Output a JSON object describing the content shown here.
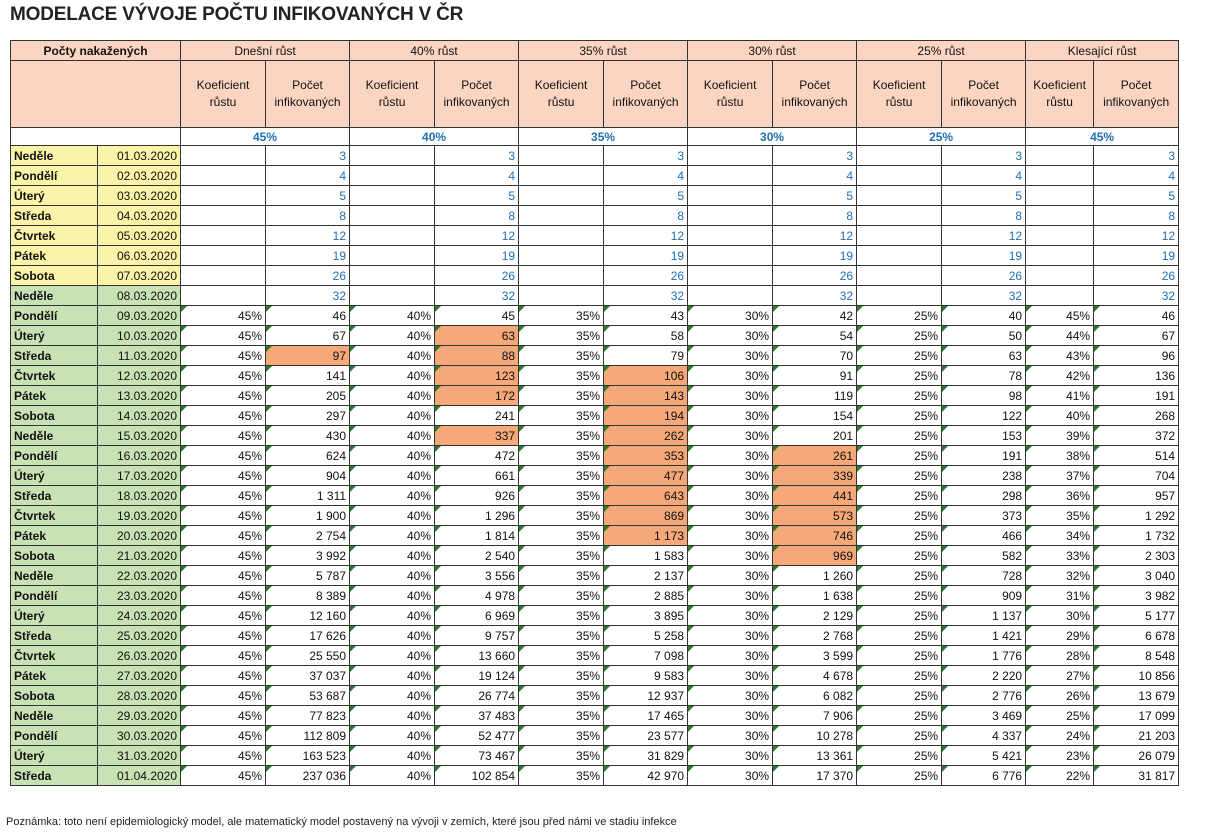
{
  "title": "MODELACE VÝVOJE POČTU INFIKOVANÝCH V ČR",
  "corner_header": "Počty nakažených",
  "groups": [
    "Dnešní růst",
    "40% růst",
    "35% růst",
    "30% růst",
    "25% růst",
    "Klesající růst"
  ],
  "subheaders": [
    "Koeficient růstu",
    "Počet infikovaných"
  ],
  "rates": [
    "45%",
    "40%",
    "35%",
    "30%",
    "25%",
    "45%"
  ],
  "rows": [
    {
      "day": "Neděle",
      "date": "01.03.2020",
      "cells": [
        null,
        "3",
        null,
        "3",
        null,
        "3",
        null,
        "3",
        null,
        "3",
        null,
        "3"
      ]
    },
    {
      "day": "Pondělí",
      "date": "02.03.2020",
      "cells": [
        null,
        "4",
        null,
        "4",
        null,
        "4",
        null,
        "4",
        null,
        "4",
        null,
        "4"
      ]
    },
    {
      "day": "Úterý",
      "date": "03.03.2020",
      "cells": [
        null,
        "5",
        null,
        "5",
        null,
        "5",
        null,
        "5",
        null,
        "5",
        null,
        "5"
      ]
    },
    {
      "day": "Středa",
      "date": "04.03.2020",
      "cells": [
        null,
        "8",
        null,
        "8",
        null,
        "8",
        null,
        "8",
        null,
        "8",
        null,
        "8"
      ]
    },
    {
      "day": "Čtvrtek",
      "date": "05.03.2020",
      "cells": [
        null,
        "12",
        null,
        "12",
        null,
        "12",
        null,
        "12",
        null,
        "12",
        null,
        "12"
      ]
    },
    {
      "day": "Pátek",
      "date": "06.03.2020",
      "cells": [
        null,
        "19",
        null,
        "19",
        null,
        "19",
        null,
        "19",
        null,
        "19",
        null,
        "19"
      ]
    },
    {
      "day": "Sobota",
      "date": "07.03.2020",
      "cells": [
        null,
        "26",
        null,
        "26",
        null,
        "26",
        null,
        "26",
        null,
        "26",
        null,
        "26"
      ]
    },
    {
      "day": "Neděle",
      "date": "08.03.2020",
      "cells": [
        null,
        "32",
        null,
        "32",
        null,
        "32",
        null,
        "32",
        null,
        "32",
        null,
        "32"
      ]
    },
    {
      "day": "Pondělí",
      "date": "09.03.2020",
      "cells": [
        "45%",
        "46",
        "40%",
        "45",
        "35%",
        "43",
        "30%",
        "42",
        "25%",
        "40",
        "45%",
        "46"
      ]
    },
    {
      "day": "Úterý",
      "date": "10.03.2020",
      "cells": [
        "45%",
        "67",
        "40%",
        "63",
        "35%",
        "58",
        "30%",
        "54",
        "25%",
        "50",
        "44%",
        "67"
      ]
    },
    {
      "day": "Středa",
      "date": "11.03.2020",
      "cells": [
        "45%",
        "97",
        "40%",
        "88",
        "35%",
        "79",
        "30%",
        "70",
        "25%",
        "63",
        "43%",
        "96"
      ]
    },
    {
      "day": "Čtvrtek",
      "date": "12.03.2020",
      "cells": [
        "45%",
        "141",
        "40%",
        "123",
        "35%",
        "106",
        "30%",
        "91",
        "25%",
        "78",
        "42%",
        "136"
      ]
    },
    {
      "day": "Pátek",
      "date": "13.03.2020",
      "cells": [
        "45%",
        "205",
        "40%",
        "172",
        "35%",
        "143",
        "30%",
        "119",
        "25%",
        "98",
        "41%",
        "191"
      ]
    },
    {
      "day": "Sobota",
      "date": "14.03.2020",
      "cells": [
        "45%",
        "297",
        "40%",
        "241",
        "35%",
        "194",
        "30%",
        "154",
        "25%",
        "122",
        "40%",
        "268"
      ]
    },
    {
      "day": "Neděle",
      "date": "15.03.2020",
      "cells": [
        "45%",
        "430",
        "40%",
        "337",
        "35%",
        "262",
        "30%",
        "201",
        "25%",
        "153",
        "39%",
        "372"
      ]
    },
    {
      "day": "Pondělí",
      "date": "16.03.2020",
      "cells": [
        "45%",
        "624",
        "40%",
        "472",
        "35%",
        "353",
        "30%",
        "261",
        "25%",
        "191",
        "38%",
        "514"
      ]
    },
    {
      "day": "Úterý",
      "date": "17.03.2020",
      "cells": [
        "45%",
        "904",
        "40%",
        "661",
        "35%",
        "477",
        "30%",
        "339",
        "25%",
        "238",
        "37%",
        "704"
      ]
    },
    {
      "day": "Středa",
      "date": "18.03.2020",
      "cells": [
        "45%",
        "1 311",
        "40%",
        "926",
        "35%",
        "643",
        "30%",
        "441",
        "25%",
        "298",
        "36%",
        "957"
      ]
    },
    {
      "day": "Čtvrtek",
      "date": "19.03.2020",
      "cells": [
        "45%",
        "1 900",
        "40%",
        "1 296",
        "35%",
        "869",
        "30%",
        "573",
        "25%",
        "373",
        "35%",
        "1 292"
      ]
    },
    {
      "day": "Pátek",
      "date": "20.03.2020",
      "cells": [
        "45%",
        "2 754",
        "40%",
        "1 814",
        "35%",
        "1 173",
        "30%",
        "746",
        "25%",
        "466",
        "34%",
        "1 732"
      ]
    },
    {
      "day": "Sobota",
      "date": "21.03.2020",
      "cells": [
        "45%",
        "3 992",
        "40%",
        "2 540",
        "35%",
        "1 583",
        "30%",
        "969",
        "25%",
        "582",
        "33%",
        "2 303"
      ]
    },
    {
      "day": "Neděle",
      "date": "22.03.2020",
      "cells": [
        "45%",
        "5 787",
        "40%",
        "3 556",
        "35%",
        "2 137",
        "30%",
        "1 260",
        "25%",
        "728",
        "32%",
        "3 040"
      ]
    },
    {
      "day": "Pondělí",
      "date": "23.03.2020",
      "cells": [
        "45%",
        "8 389",
        "40%",
        "4 978",
        "35%",
        "2 885",
        "30%",
        "1 638",
        "25%",
        "909",
        "31%",
        "3 982"
      ]
    },
    {
      "day": "Úterý",
      "date": "24.03.2020",
      "cells": [
        "45%",
        "12 160",
        "40%",
        "6 969",
        "35%",
        "3 895",
        "30%",
        "2 129",
        "25%",
        "1 137",
        "30%",
        "5 177"
      ]
    },
    {
      "day": "Středa",
      "date": "25.03.2020",
      "cells": [
        "45%",
        "17 626",
        "40%",
        "9 757",
        "35%",
        "5 258",
        "30%",
        "2 768",
        "25%",
        "1 421",
        "29%",
        "6 678"
      ]
    },
    {
      "day": "Čtvrtek",
      "date": "26.03.2020",
      "cells": [
        "45%",
        "25 550",
        "40%",
        "13 660",
        "35%",
        "7 098",
        "30%",
        "3 599",
        "25%",
        "1 776",
        "28%",
        "8 548"
      ]
    },
    {
      "day": "Pátek",
      "date": "27.03.2020",
      "cells": [
        "45%",
        "37 037",
        "40%",
        "19 124",
        "35%",
        "9 583",
        "30%",
        "4 678",
        "25%",
        "2 220",
        "27%",
        "10 856"
      ]
    },
    {
      "day": "Sobota",
      "date": "28.03.2020",
      "cells": [
        "45%",
        "53 687",
        "40%",
        "26 774",
        "35%",
        "12 937",
        "30%",
        "6 082",
        "25%",
        "2 776",
        "26%",
        "13 679"
      ]
    },
    {
      "day": "Neděle",
      "date": "29.03.2020",
      "cells": [
        "45%",
        "77 823",
        "40%",
        "37 483",
        "35%",
        "17 465",
        "30%",
        "7 906",
        "25%",
        "3 469",
        "25%",
        "17 099"
      ]
    },
    {
      "day": "Pondělí",
      "date": "30.03.2020",
      "cells": [
        "45%",
        "112 809",
        "40%",
        "52 477",
        "35%",
        "23 577",
        "30%",
        "10 278",
        "25%",
        "4 337",
        "24%",
        "21 203"
      ]
    },
    {
      "day": "Úterý",
      "date": "31.03.2020",
      "cells": [
        "45%",
        "163 523",
        "40%",
        "73 467",
        "35%",
        "31 829",
        "30%",
        "13 361",
        "25%",
        "5 421",
        "23%",
        "26 079"
      ]
    },
    {
      "day": "Středa",
      "date": "01.04.2020",
      "cells": [
        "45%",
        "237 036",
        "40%",
        "102 854",
        "35%",
        "42 970",
        "30%",
        "17 370",
        "25%",
        "6 776",
        "22%",
        "31 817"
      ]
    }
  ],
  "note": "Poznámka: toto není epidemiologický model, ale matematický model postavený na vývoji v zemích, které jsou před námi ve stadiu infekce"
}
